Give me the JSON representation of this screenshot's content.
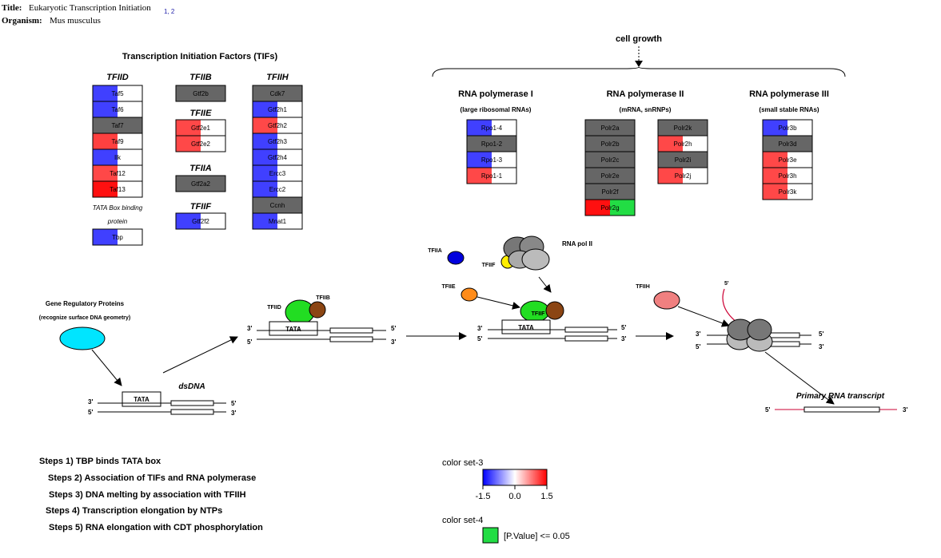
{
  "header": {
    "title_label": "Title:",
    "title": "Eukaryotic Transcription Initiation",
    "title_refs": "1, 2",
    "organism_label": "Organism:",
    "organism": "Mus musculus"
  },
  "tifs": {
    "heading": "Transcription Initiation Factors (TIFs)",
    "tfiid": {
      "label": "TFIID",
      "genes": [
        {
          "name": "Taf5",
          "color": "#4040ff"
        },
        {
          "name": "Taf6",
          "color": "#4040ff"
        },
        {
          "name": "Taf7",
          "color": "#666666"
        },
        {
          "name": "Taf9",
          "color": "#ff4040"
        },
        {
          "name": "Ilk",
          "color": "#4040ff"
        },
        {
          "name": "Taf12",
          "color": "#ff4848"
        },
        {
          "name": "Taf13",
          "color": "#ff1010"
        }
      ]
    },
    "tata_caption_1": "TATA Box binding",
    "tata_caption_2": "protein",
    "tbp": {
      "name": "Tbp",
      "color": "#4040ff"
    },
    "tfiib": {
      "label": "TFIIB",
      "genes": [
        {
          "name": "Gtf2b",
          "color": "#666666"
        }
      ]
    },
    "tfiie": {
      "label": "TFIIE",
      "genes": [
        {
          "name": "Gtf2e1",
          "color": "#ff4848"
        },
        {
          "name": "Gtf2e2",
          "color": "#ff4848"
        }
      ]
    },
    "tfiia": {
      "label": "TFIIA",
      "genes": [
        {
          "name": "Gtf2a2",
          "color": "#666666"
        }
      ]
    },
    "tfiif": {
      "label": "TFIIF",
      "genes": [
        {
          "name": "Gtf2f2",
          "color": "#4040ff"
        }
      ]
    },
    "tfiih": {
      "label": "TFIIH",
      "genes": [
        {
          "name": "Cdk7",
          "color": "#666666"
        },
        {
          "name": "Gtf2h1",
          "color": "#4040ff"
        },
        {
          "name": "Gtf2h2",
          "color": "#ff4848"
        },
        {
          "name": "Gtf2h3",
          "color": "#4040ff"
        },
        {
          "name": "Gtf2h4",
          "color": "#4040ff"
        },
        {
          "name": "Ercc3",
          "color": "#4040ff"
        },
        {
          "name": "Ercc2",
          "color": "#4040ff"
        },
        {
          "name": "Ccnh",
          "color": "#666666"
        },
        {
          "name": "Mnat1",
          "color": "#4040ff"
        }
      ]
    }
  },
  "polymerases": {
    "cell_growth": "cell growth",
    "pol1": {
      "title": "RNA polymerase I",
      "subtitle": "(large ribosomal RNAs)",
      "genes": [
        {
          "name": "Rpo1-4",
          "color": "#4040ff"
        },
        {
          "name": "Rpo1-2",
          "color": "#666666"
        },
        {
          "name": "Rpo1-3",
          "color": "#4040ff"
        },
        {
          "name": "Rpo1-1",
          "color": "#ff4848"
        }
      ]
    },
    "pol2": {
      "title": "RNA polymerase II",
      "subtitle": "(mRNA, snRNPs)",
      "genes_left": [
        {
          "name": "Polr2a",
          "color": "#666666"
        },
        {
          "name": "Polr2b",
          "color": "#666666"
        },
        {
          "name": "Polr2c",
          "color": "#666666"
        },
        {
          "name": "Polr2e",
          "color": "#666666"
        },
        {
          "name": "Polr2f",
          "color": "#666666"
        },
        {
          "name": "Polr2g",
          "color": "#ff1010",
          "color2": "#22dd44"
        }
      ],
      "genes_right": [
        {
          "name": "Polr2k",
          "color": "#666666"
        },
        {
          "name": "Polr2h",
          "color": "#ff4848"
        },
        {
          "name": "Polr2i",
          "color": "#666666"
        },
        {
          "name": "Polr2j",
          "color": "#ff4848"
        }
      ]
    },
    "pol3": {
      "title": "RNA polymerase III",
      "subtitle": "(small stable RNAs)",
      "genes": [
        {
          "name": "Polr3b",
          "color": "#4040ff"
        },
        {
          "name": "Polr3d",
          "color": "#666666"
        },
        {
          "name": "Polr3e",
          "color": "#ff4848"
        },
        {
          "name": "Polr3h",
          "color": "#ff4848"
        },
        {
          "name": "Polr3k",
          "color": "#ff4848"
        }
      ]
    }
  },
  "pathway": {
    "gene_regulatory_1": "Gene Regulatory Proteins",
    "gene_regulatory_2": "(recognize surface DNA geometry)",
    "dsdna": "dsDNA",
    "tata": "TATA",
    "three_prime": "3'",
    "five_prime": "5'",
    "tfiid": "TFIID",
    "tfiib": "TFIIB",
    "tfiia": "TFIIA",
    "tfiif": "TFIIF",
    "tfiie": "TFIIE",
    "rna_pol_ii": "RNA pol II",
    "tfiih": "TFIIH",
    "primary_transcript": "Primary RNA transcript"
  },
  "steps": [
    "Steps 1) TBP binds TATA box",
    "Steps 2) Association of TIFs and RNA polymerase",
    "Steps 3) DNA melting by association with TFIIH",
    "Steps 4) Transcription elongation by NTPs",
    "Steps 5) RNA elongation with CDT phosphorylation"
  ],
  "legend": {
    "set3_title": "color set-3",
    "set3_ticks": [
      "-1.5",
      "0.0",
      "1.5"
    ],
    "set3_colors": [
      "#0000ff",
      "#ffffff",
      "#ff0000"
    ],
    "set4_title": "color set-4",
    "set4_label": "[P.Value]  <= 0.05",
    "set4_color": "#22dd44"
  },
  "colors": {
    "gene_fill_right": "#ffffff",
    "gray_gene": "#666666",
    "tif_label": "#1a8a8a",
    "gene_regulatory": "#00e5ff",
    "tfiid_protein": "#22dd22",
    "tfiib_protein": "#8b4513",
    "tfiia_protein": "#0000dd",
    "tfiif_protein": "#ffee00",
    "tfiie_protein": "#ff8c1a",
    "tfiih_protein": "#f08080",
    "polymerase_dark": "#777777",
    "polymerase_light": "#bbbbbb",
    "rna_line": "#cc0033"
  }
}
